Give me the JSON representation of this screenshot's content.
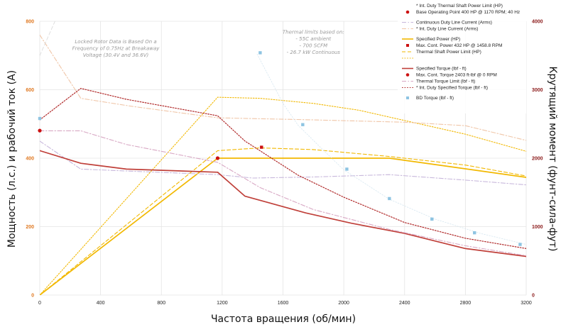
{
  "chart_data": {
    "type": "line",
    "xlabel": "Частота вращения (об/мин)",
    "ylabel_left": "Мощность (л.с.) и рабочий ток (A)",
    "ylabel_right": "Крутящий момент (фунт-сила-фут)",
    "xlim": [
      0,
      3200
    ],
    "ylim_left": [
      0,
      800
    ],
    "ylim_right": [
      0,
      4000
    ],
    "x_ticks": [
      "0",
      "400",
      "800",
      "1200",
      "1600",
      "2000",
      "2400",
      "2800",
      "3200"
    ],
    "y_left_ticks": [
      "0",
      "200",
      "400",
      "600",
      "800"
    ],
    "y_right_ticks": [
      "0",
      "1000",
      "2000",
      "3000",
      "4000"
    ],
    "grid": true,
    "legend_position": "top-right",
    "notes": [
      [
        "Locked Rotor Data is Based On a",
        "Frequency of 0.75Hz at Breakaway",
        "Voltage (30.4V and 36.6V)"
      ],
      [
        "Thermal limits based on:",
        "- 55C ambient",
        "- 700 SCFM",
        "- 26.7 kW Continuous"
      ]
    ],
    "colors": {
      "left_axis_ticks": "#e07820",
      "right_axis_ticks": "#8b1a1a",
      "power": "#f2b800",
      "torque": "#c0403a",
      "current_cont": "#c8b8dc",
      "current_int": "#f0c6a8",
      "bd": "#8ec4e2",
      "grid": "#e4e4e4"
    },
    "series": [
      {
        "name": "Specified Power (HP)",
        "axis": "left",
        "style": "solid",
        "color": "#f2b800",
        "width": 1.7,
        "x": [
          0,
          1170,
          2300,
          3200
        ],
        "y": [
          0,
          400,
          400,
          344
        ]
      },
      {
        "name": "Thermal Shaft Power Limit (HP)",
        "axis": "left",
        "style": "dashed",
        "color": "#f2b800",
        "width": 1.1,
        "x": [
          0,
          1170,
          1450,
          1800,
          2300,
          2800,
          3200
        ],
        "y": [
          0,
          422,
          430,
          425,
          405,
          380,
          348
        ]
      },
      {
        "name": "* Int. Duty Thermal Shaft Power Limit (HP)",
        "axis": "left",
        "style": "dotted",
        "color": "#f2b800",
        "width": 1.1,
        "x": [
          0,
          1170,
          1450,
          1800,
          2100,
          2400,
          2800,
          3200
        ],
        "y": [
          0,
          578,
          575,
          560,
          540,
          510,
          470,
          420
        ]
      },
      {
        "name": "Continuous Duty Line Current (Arms)",
        "axis": "left",
        "style": "dashdot",
        "color": "#c8b8dc",
        "width": 1.1,
        "x": [
          0,
          270,
          600,
          1170,
          1400,
          1800,
          2300,
          2800,
          3200
        ],
        "y": [
          450,
          368,
          362,
          352,
          342,
          345,
          352,
          336,
          322
        ]
      },
      {
        "name": "* Int. Duty Line Current (Arms)",
        "axis": "left",
        "style": "dashdot",
        "color": "#f0c6a8",
        "width": 1.1,
        "x": [
          0,
          270,
          600,
          1170,
          1800,
          2400,
          2800,
          3200
        ],
        "y": [
          760,
          575,
          552,
          518,
          512,
          505,
          495,
          452
        ]
      },
      {
        "name": "Specified Torque (lbf - ft)",
        "axis": "right",
        "style": "solid",
        "color": "#c0403a",
        "width": 1.7,
        "x": [
          0,
          270,
          570,
          1170,
          1350,
          1750,
          2050,
          2400,
          2800,
          3200
        ],
        "y": [
          2110,
          1925,
          1840,
          1795,
          1445,
          1200,
          1050,
          900,
          680,
          565
        ]
      },
      {
        "name": "Thermal Torque Limit (lbf - ft)",
        "axis": "right",
        "style": "dashdot",
        "color": "#d8a8c4",
        "width": 1.1,
        "x": [
          0,
          270,
          570,
          1170,
          1450,
          1800,
          2300,
          2800,
          3200
        ],
        "y": [
          2400,
          2400,
          2200,
          1940,
          1570,
          1250,
          960,
          720,
          575
        ]
      },
      {
        "name": "* Int. Duty Specified Torque (lbf - ft)",
        "axis": "right",
        "style": "dotted",
        "color": "#b02828",
        "width": 1.2,
        "x": [
          0,
          270,
          570,
          1170,
          1350,
          1700,
          2000,
          2400,
          2800,
          3200
        ],
        "y": [
          2560,
          3020,
          2860,
          2620,
          2250,
          1750,
          1430,
          1060,
          830,
          680
        ]
      },
      {
        "name": "Locked rotor current (Arms)",
        "axis": "left",
        "style": "dashed",
        "color": "#d8d8d8",
        "width": 0.8,
        "x": [
          0,
          100,
          170
        ],
        "y": [
          700,
          800,
          950
        ]
      },
      {
        "name": "BD torque trend (lbf - ft)",
        "axis": "right",
        "style": "dotted",
        "color": "#d5e6f0",
        "width": 0.8,
        "x": [
          1430,
          1600,
          1700,
          1850,
          2000,
          2300,
          2600,
          2900,
          3200
        ],
        "y": [
          3520,
          2800,
          2480,
          2150,
          1830,
          1400,
          1110,
          900,
          740
        ]
      }
    ],
    "points": [
      {
        "name": "BD Torque (lbf - ft)",
        "axis": "right",
        "marker": "square",
        "color": "#8ec4e2",
        "x": [
          0,
          1450,
          1730,
          2020,
          2300,
          2580,
          2860,
          3160
        ],
        "y": [
          2580,
          3540,
          2490,
          1840,
          1410,
          1110,
          910,
          740
        ]
      },
      {
        "name": "Base Operating Point 400 HP @ 1170 RPM; 40 Hz",
        "axis": "left",
        "marker": "circle",
        "color": "#cc1111",
        "x": [
          1170
        ],
        "y": [
          400
        ]
      },
      {
        "name": "Max. Cont. Power 432 HP @ 1458.8 RPM",
        "axis": "left",
        "marker": "square",
        "color": "#cc1111",
        "x": [
          1458.8
        ],
        "y": [
          432
        ]
      },
      {
        "name": "Max. Cont. Torque 2403 ft-lbf @ 0 RPM",
        "axis": "right",
        "marker": "circle",
        "color": "#cc1111",
        "x": [
          0
        ],
        "y": [
          2403
        ]
      }
    ],
    "legend": [
      {
        "text": "* Int. Duty Thermal Shaft Power Limit (HP)",
        "sym": "none"
      },
      {
        "text": "Base Operating Point 400 HP @ 1170 RPM; 40 Hz",
        "sym": "circle",
        "color": "#cc1111",
        "gap_after": true
      },
      {
        "text": "Continuous Duty Line Current (Arms)",
        "sym": "dashdot",
        "color": "#c8b8dc"
      },
      {
        "text": "* Int. Duty Line Current (Arms)",
        "sym": "dashdot",
        "color": "#f0c6a8",
        "gap_after": true
      },
      {
        "text": "Specified Power (HP)",
        "sym": "solid",
        "color": "#f2b800"
      },
      {
        "text": "Max. Cont. Power 432 HP @ 1458.8 RPM",
        "sym": "square",
        "color": "#cc1111"
      },
      {
        "text": "Thermal Shaft Power Limit (HP)",
        "sym": "dashed",
        "color": "#f2b800"
      },
      {
        "text": "",
        "sym": "dotted",
        "color": "#f2b800",
        "gap_after": true
      },
      {
        "text": "Specified Torque (lbf - ft)",
        "sym": "solid",
        "color": "#c0403a"
      },
      {
        "text": "Max. Cont. Torque 2403 ft-lbf @ 0 RPM",
        "sym": "circle",
        "color": "#cc1111"
      },
      {
        "text": "Thermal Torque Limit (lbf - ft)",
        "sym": "dashdot",
        "color": "#d8a8c4"
      },
      {
        "text": "* Int. Duty Specified Torque (lbf - ft)",
        "sym": "dotted",
        "color": "#b02828",
        "gap_after": true
      },
      {
        "text": "BD Torque (lbf - ft)",
        "sym": "square",
        "color": "#8ec4e2"
      }
    ]
  }
}
